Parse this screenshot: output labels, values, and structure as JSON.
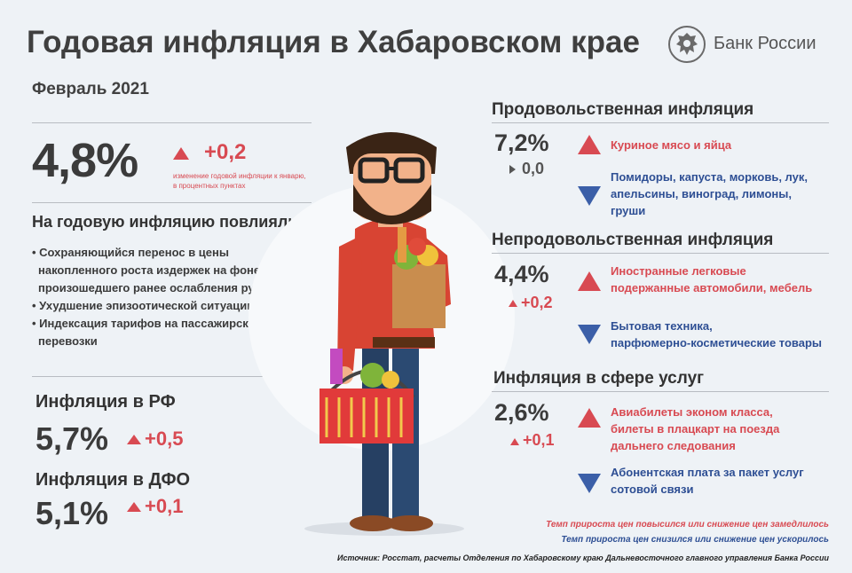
{
  "header": {
    "title": "Годовая инфляция в Хабаровском крае",
    "period": "Февраль 2021",
    "logo_text": "Банк России"
  },
  "main": {
    "value": "4,8%",
    "delta": "+0,2",
    "delta_caption_1": "изменение годовой инфляции к январю,",
    "delta_caption_2": "в процентных пунктах"
  },
  "factors": {
    "heading": "На годовую инфляцию повлияли:",
    "items": [
      "• Сохраняющийся перенос в цены",
      "накопленного роста издержек на фоне",
      "произошедшего ранее ослабления рубля",
      "• Ухудшение эпизоотической ситуации",
      "• Индексация тарифов на пассажирские",
      "перевозки"
    ]
  },
  "rf": {
    "label": "Инфляция в РФ",
    "value": "5,7%",
    "delta": "+0,5"
  },
  "dfo": {
    "label": "Инфляция в ДФО",
    "value": "5,1%",
    "delta": "+0,1"
  },
  "food": {
    "heading": "Продовольственная инфляция",
    "value": "7,2%",
    "delta": "0,0",
    "up_items": [
      "Куриное мясо и яйца"
    ],
    "down_items": [
      "Помидоры, капуста, морковь, лук,",
      "апельсины, виноград, лимоны,",
      "груши"
    ]
  },
  "nonfood": {
    "heading": "Непродовольственная инфляция",
    "value": "4,4%",
    "delta": "+0,2",
    "up_items": [
      "Иностранные легковые",
      "подержанные автомобили, мебель"
    ],
    "down_items": [
      "Бытовая техника,",
      "парфюмерно-косметические товары"
    ]
  },
  "services": {
    "heading": "Инфляция в сфере услуг",
    "value": "2,6%",
    "delta": "+0,1",
    "up_items": [
      "Авиабилеты эконом класса,",
      "билеты в плацкарт на поезда",
      "дальнего следования"
    ],
    "down_items": [
      "Абонентская плата за пакет услуг",
      "сотовой связи"
    ]
  },
  "legend": {
    "red": "Темп прироста цен повысился или снижение цен замедлилось",
    "blue": "Темп прироста цен снизился или снижение цен ускорилось"
  },
  "source": "Источник: Росстат, расчеты Отделения по Хабаровскому краю  Дальневосточного главного управления Банка России",
  "colors": {
    "red": "#d84a52",
    "blue": "#2e4f94",
    "background": "#eef2f6"
  }
}
